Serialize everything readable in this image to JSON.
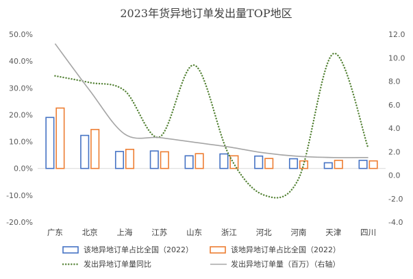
{
  "chart_data": {
    "type": "bar",
    "title": "2023年货异地订单发出量TOP地区",
    "categories": [
      "广东",
      "北京",
      "上海",
      "江苏",
      "山东",
      "浙江",
      "河北",
      "河南",
      "天津",
      "四川"
    ],
    "left_axis": {
      "ylim": [
        -20,
        50
      ],
      "step": 10,
      "tick_labels": [
        "-20.0%",
        "-10.0%",
        "0.0%",
        "10.0%",
        "20.0%",
        "30.0%",
        "40.0%",
        "50.0%"
      ]
    },
    "right_axis": {
      "ylim": [
        -4,
        12
      ],
      "step": 2,
      "tick_labels": [
        "-4.0",
        "-2.0",
        "0.0",
        "2.0",
        "4.0",
        "6.0",
        "8.0",
        "10.0",
        "12.0"
      ]
    },
    "series": [
      {
        "name": "该地异地订单占比全国（2022）",
        "type": "bar",
        "axis": "left",
        "color": "#4472C4",
        "values": [
          19.2,
          12.5,
          6.5,
          6.7,
          4.9,
          5.6,
          4.8,
          3.8,
          2.3,
          3.2
        ]
      },
      {
        "name": "该地异地订单占比全国（2022）",
        "type": "bar",
        "axis": "left",
        "color": "#ED7D31",
        "values": [
          22.7,
          14.7,
          7.3,
          6.4,
          5.7,
          4.9,
          3.9,
          3.0,
          3.2,
          3.0
        ]
      },
      {
        "name": "发出异地订单量同比",
        "type": "line",
        "style": "dotted",
        "axis": "left",
        "color": "#548235",
        "values": [
          34.5,
          32.0,
          29.0,
          11.7,
          38.5,
          5.0,
          -9.9,
          -3.8,
          42.8,
          7.6
        ]
      },
      {
        "name": "发出异地订单量（百万）（右轴）",
        "type": "line",
        "style": "solid",
        "axis": "right",
        "color": "#A5A5A5",
        "values": [
          11.2,
          7.2,
          3.5,
          3.2,
          2.8,
          2.4,
          1.9,
          1.6,
          1.5,
          1.5
        ]
      }
    ],
    "grid": false,
    "legend_position": "bottom"
  }
}
